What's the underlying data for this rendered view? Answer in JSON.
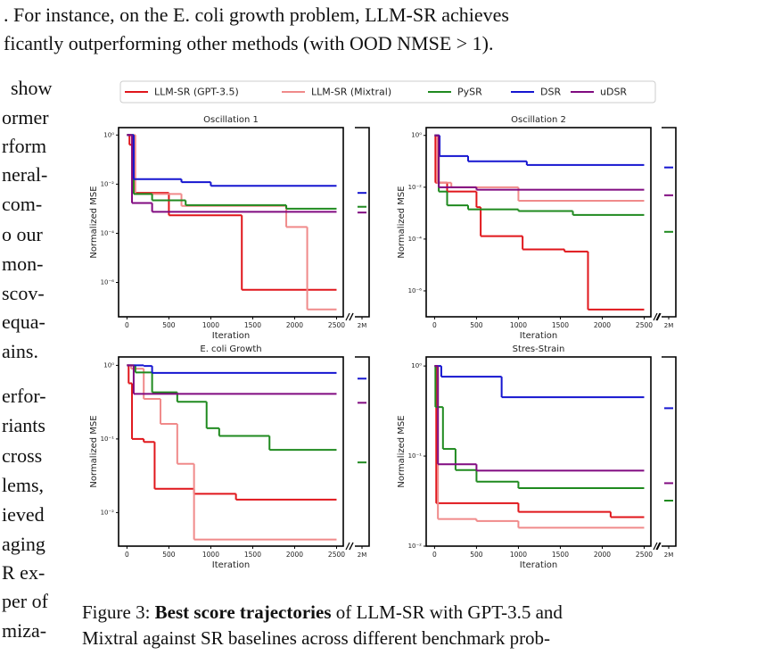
{
  "top_text": [
    ". For instance, on the E. coli growth problem, LLM-SR achieves",
    "ficantly outperforming other methods (with OOD NMSE > 1)."
  ],
  "left_text": [
    "show",
    "ormer",
    "rform",
    "neral-",
    "com-",
    "o  our",
    "mon-",
    "scov-",
    "equa-",
    "ains.",
    "erfor-",
    "riants",
    "cross",
    "lems,",
    "ieved",
    "aging",
    "R ex-",
    "per of",
    "miza-"
  ],
  "caption": {
    "label": "Figure 3:",
    "bold": "Best score trajectories",
    "rest": "of LLM-SR with GPT-3.5 and",
    "line2": "Mixtral against SR baselines across different benchmark prob-"
  },
  "legend": [
    {
      "name": "LLM-SR (GPT-3.5)",
      "color": "#e0161b"
    },
    {
      "name": "LLM-SR (Mixtral)",
      "color": "#f08a8a"
    },
    {
      "name": "PySR",
      "color": "#1f8a1f"
    },
    {
      "name": "DSR",
      "color": "#1515d0"
    },
    {
      "name": "uDSR",
      "color": "#800a80"
    }
  ],
  "chart_data": [
    {
      "type": "line",
      "title": "Oscillation 1",
      "xlabel": "Iteration",
      "ylabel": "Normalized MSE",
      "log_y": true,
      "xlim": [
        -100,
        2580
      ],
      "ylim": [
        4e-08,
        2
      ],
      "xticks": [
        0,
        500,
        1000,
        1500,
        2000,
        2500
      ],
      "yticks": [
        {
          "value": 1,
          "label": "10⁰"
        },
        {
          "value": 0.01,
          "label": "10⁻²"
        },
        {
          "value": 0.0001,
          "label": "10⁻⁴"
        },
        {
          "value": 1e-06,
          "label": "10⁻⁶"
        }
      ],
      "break_label": "2M",
      "series": [
        {
          "x": [
            0,
            30,
            80,
            500,
            1370,
            2500
          ],
          "values": [
            1,
            0.4,
            0.0044,
            0.00054,
            5e-07,
            5e-07
          ]
        },
        {
          "x": [
            0,
            100,
            650,
            1900,
            2150,
            2500
          ],
          "values": [
            1,
            0.004,
            0.0013,
            0.00018,
            8e-08,
            8e-08
          ]
        },
        {
          "x": [
            0,
            80,
            300,
            700,
            1900,
            2500
          ],
          "values": [
            1,
            0.004,
            0.0022,
            0.0014,
            0.001,
            0.001
          ],
          "ood_value": 0.0012
        },
        {
          "x": [
            0,
            80,
            650,
            1000,
            2500
          ],
          "values": [
            1,
            0.016,
            0.012,
            0.0085,
            0.0085
          ],
          "ood_value": 0.0044
        },
        {
          "x": [
            0,
            60,
            300,
            2500
          ],
          "values": [
            1,
            0.0017,
            0.00075,
            0.00075
          ],
          "ood_value": 0.0007
        }
      ]
    },
    {
      "type": "line",
      "title": "Oscillation 2",
      "xlabel": "Iteration",
      "ylabel": "Normalized MSE",
      "log_y": true,
      "xlim": [
        -100,
        2580
      ],
      "ylim": [
        1e-07,
        2
      ],
      "xticks": [
        0,
        500,
        1000,
        1500,
        2000,
        2500
      ],
      "yticks": [
        {
          "value": 1,
          "label": "10⁰"
        },
        {
          "value": 0.01,
          "label": "10⁻²"
        },
        {
          "value": 0.0001,
          "label": "10⁻⁴"
        },
        {
          "value": 1e-06,
          "label": "10⁻⁶"
        }
      ],
      "break_label": "2M",
      "series": [
        {
          "x": [
            0,
            10,
            150,
            500,
            550,
            1050,
            1550,
            1830,
            2500
          ],
          "values": [
            1,
            0.015,
            0.0068,
            0.0017,
            0.00013,
            4e-05,
            3.3e-05,
            1.9e-07,
            1.9e-07
          ]
        },
        {
          "x": [
            0,
            30,
            200,
            1000,
            2500
          ],
          "values": [
            1,
            0.015,
            0.01,
            0.003,
            0.003
          ]
        },
        {
          "x": [
            0,
            50,
            150,
            400,
            1000,
            1650,
            2500
          ],
          "values": [
            1,
            0.0068,
            0.002,
            0.0014,
            0.0012,
            0.00085,
            0.00085
          ],
          "ood_value": 0.00019
        },
        {
          "x": [
            0,
            60,
            400,
            1100,
            2500
          ],
          "values": [
            1,
            0.16,
            0.1,
            0.072,
            0.072
          ],
          "ood_value": 0.058
        },
        {
          "x": [
            0,
            50,
            500,
            2500
          ],
          "values": [
            1,
            0.01,
            0.008,
            0.008
          ],
          "ood_value": 0.0049
        }
      ]
    },
    {
      "type": "line",
      "title": "E. coli Growth",
      "xlabel": "Iteration",
      "ylabel": "Normalized MSE",
      "log_y": true,
      "xlim": [
        -100,
        2580
      ],
      "ylim": [
        0.0035,
        1.3
      ],
      "xticks": [
        0,
        500,
        1000,
        1500,
        2000,
        2500
      ],
      "yticks": [
        {
          "value": 1,
          "label": "10⁰"
        },
        {
          "value": 0.1,
          "label": "10⁻¹"
        },
        {
          "value": 0.01,
          "label": "10⁻²"
        }
      ],
      "break_label": "2M",
      "series": [
        {
          "x": [
            0,
            20,
            60,
            200,
            330,
            800,
            1300,
            2500
          ],
          "values": [
            1,
            0.57,
            0.1,
            0.091,
            0.021,
            0.018,
            0.015,
            0.015
          ]
        },
        {
          "x": [
            0,
            50,
            200,
            400,
            600,
            800,
            2500
          ],
          "values": [
            1,
            0.9,
            0.35,
            0.16,
            0.046,
            0.0043,
            0.0043
          ]
        },
        {
          "x": [
            0,
            100,
            300,
            600,
            950,
            1100,
            1700,
            2500
          ],
          "values": [
            1,
            0.8,
            0.43,
            0.32,
            0.14,
            0.11,
            0.071,
            0.071
          ],
          "ood_value": 0.048
        },
        {
          "x": [
            0,
            200,
            300,
            2500
          ],
          "values": [
            1,
            0.98,
            0.79,
            0.79
          ],
          "ood_value": 0.66
        },
        {
          "x": [
            0,
            80,
            2500
          ],
          "values": [
            1,
            0.41,
            0.41
          ],
          "ood_value": 0.31
        }
      ]
    },
    {
      "type": "line",
      "title": "Stres-Strain",
      "xlabel": "Iteration",
      "ylabel": "Normalized MSE",
      "log_y": true,
      "xlim": [
        -100,
        2580
      ],
      "ylim": [
        0.01,
        1.26
      ],
      "xticks": [
        0,
        500,
        1000,
        1500,
        2000,
        2500
      ],
      "yticks": [
        {
          "value": 1,
          "label": "10⁰"
        },
        {
          "value": 0.1,
          "label": "10⁻¹"
        },
        {
          "value": 0.01,
          "label": "10⁻²"
        }
      ],
      "break_label": "2M",
      "series": [
        {
          "x": [
            0,
            20,
            1000,
            2100,
            2500
          ],
          "values": [
            1,
            0.03,
            0.024,
            0.021,
            0.021
          ]
        },
        {
          "x": [
            0,
            40,
            500,
            1000,
            2500
          ],
          "values": [
            1,
            0.02,
            0.019,
            0.016,
            0.016
          ]
        },
        {
          "x": [
            0,
            10,
            100,
            250,
            500,
            1000,
            2500
          ],
          "values": [
            1,
            0.35,
            0.12,
            0.07,
            0.052,
            0.044,
            0.044
          ],
          "ood_value": 0.032
        },
        {
          "x": [
            0,
            80,
            800,
            2500
          ],
          "values": [
            1,
            0.76,
            0.45,
            0.45
          ],
          "ood_value": 0.34
        },
        {
          "x": [
            0,
            40,
            500,
            2500
          ],
          "values": [
            1,
            0.081,
            0.069,
            0.069
          ],
          "ood_value": 0.05
        }
      ]
    }
  ]
}
